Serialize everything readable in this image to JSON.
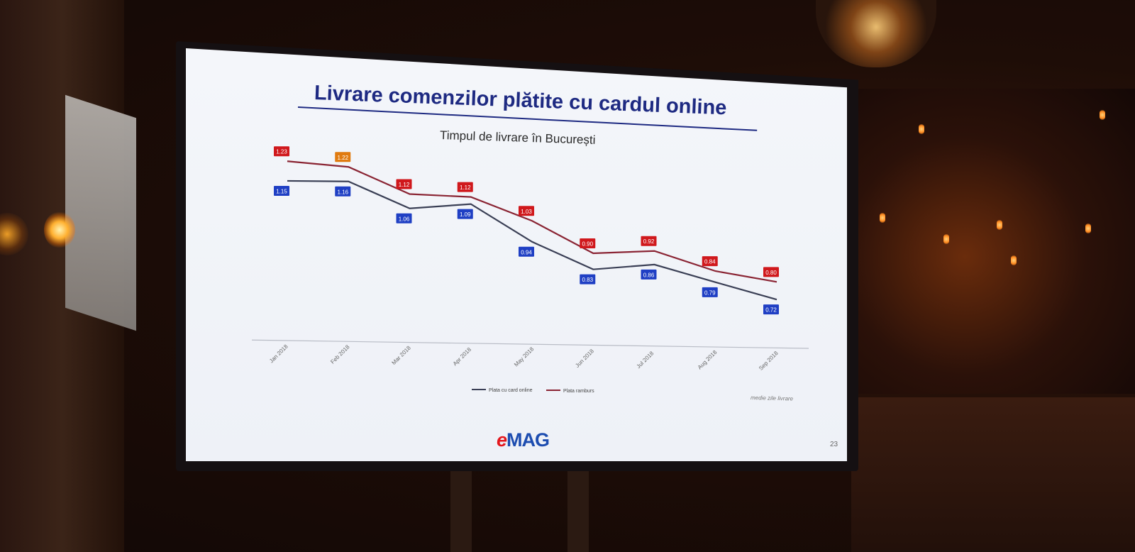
{
  "slide": {
    "title": "Livrare comenzilor plătite cu cardul online",
    "subtitle": "Timpul de livrare în București",
    "brand": {
      "e": "e",
      "rest": "MAG"
    },
    "page_number": "23",
    "note": "medie zile livrare"
  },
  "colors": {
    "title": "#1e2a82",
    "card_line": "#3a3f55",
    "card_label_bg": "#1f3fc4",
    "ramburs_line": "#8a2433",
    "ramburs_label_bg": "#d0181c",
    "feb_ramburs_label_bg": "#e07b10"
  },
  "chart_data": {
    "type": "line",
    "title": "Timpul de livrare în București",
    "categories": [
      "Jan 2018",
      "Feb 2018",
      "Mar 2018",
      "Apr 2018",
      "May 2018",
      "Jun 2018",
      "Jul 2018",
      "Aug 2018",
      "Sep 2018"
    ],
    "series": [
      {
        "name": "Plata cu card online",
        "values": [
          1.15,
          1.16,
          1.06,
          1.09,
          0.94,
          0.83,
          0.86,
          0.79,
          0.72
        ]
      },
      {
        "name": "Plata ramburs",
        "values": [
          1.23,
          1.22,
          1.12,
          1.12,
          1.03,
          0.9,
          0.92,
          0.84,
          0.8
        ]
      }
    ],
    "legend": "bottom",
    "grid": false,
    "ylim": [
      0.5,
      1.3
    ]
  }
}
